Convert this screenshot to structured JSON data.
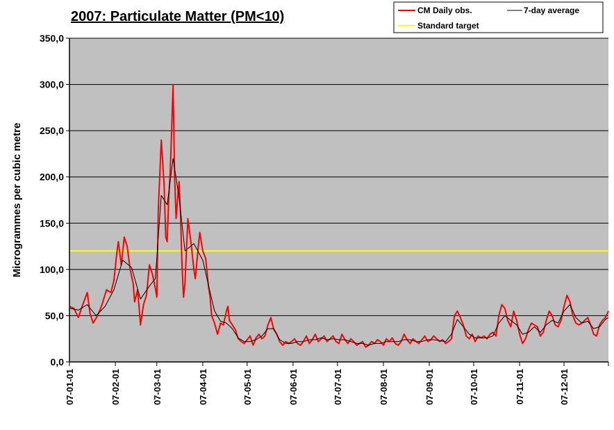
{
  "chart_data": {
    "type": "line",
    "title": "2007: Particulate Matter (PM<10)",
    "ylabel": "Microgrammes per cubic metre",
    "xlabel": "",
    "ylim": [
      0,
      350
    ],
    "y_ticks": [
      "0,0",
      "50,0",
      "100,0",
      "150,0",
      "200,0",
      "250,0",
      "300,0",
      "350,0"
    ],
    "x_ticks": [
      "07-01-01",
      "07-02-01",
      "07-03-01",
      "07-04-01",
      "07-05-01",
      "07-06-01",
      "07-07-01",
      "07-08-01",
      "07-09-01",
      "07-10-01",
      "07-11-01",
      "07-12-01"
    ],
    "x_tick_days": [
      0,
      31,
      59,
      90,
      120,
      151,
      181,
      212,
      243,
      273,
      304,
      334
    ],
    "x_domain_days": [
      0,
      364
    ],
    "grid": "horizontal",
    "legend_position": "top-right",
    "legend": [
      "CM Daily obs.",
      "7-day average",
      "Standard target"
    ],
    "colors": {
      "daily": "#ff0000",
      "average": "#000000",
      "target": "#ffff00",
      "plot_bg": "#c0c0c0"
    },
    "target_value": 120,
    "series": [
      {
        "name": "CM Daily obs.",
        "points": [
          [
            0,
            60
          ],
          [
            3,
            58
          ],
          [
            6,
            48
          ],
          [
            9,
            62
          ],
          [
            12,
            75
          ],
          [
            14,
            52
          ],
          [
            16,
            42
          ],
          [
            19,
            50
          ],
          [
            22,
            62
          ],
          [
            25,
            78
          ],
          [
            28,
            75
          ],
          [
            30,
            88
          ],
          [
            32,
            118
          ],
          [
            33,
            130
          ],
          [
            35,
            105
          ],
          [
            37,
            135
          ],
          [
            39,
            125
          ],
          [
            41,
            100
          ],
          [
            43,
            85
          ],
          [
            44,
            65
          ],
          [
            46,
            78
          ],
          [
            48,
            40
          ],
          [
            50,
            62
          ],
          [
            52,
            72
          ],
          [
            54,
            105
          ],
          [
            56,
            95
          ],
          [
            58,
            80
          ],
          [
            59,
            70
          ],
          [
            60,
            165
          ],
          [
            62,
            240
          ],
          [
            64,
            190
          ],
          [
            65,
            135
          ],
          [
            66,
            130
          ],
          [
            67,
            175
          ],
          [
            68,
            205
          ],
          [
            69,
            250
          ],
          [
            70,
            300
          ],
          [
            71,
            200
          ],
          [
            72,
            155
          ],
          [
            73,
            175
          ],
          [
            74,
            195
          ],
          [
            75,
            160
          ],
          [
            76,
            105
          ],
          [
            77,
            70
          ],
          [
            78,
            85
          ],
          [
            80,
            155
          ],
          [
            82,
            130
          ],
          [
            84,
            100
          ],
          [
            85,
            90
          ],
          [
            87,
            125
          ],
          [
            88,
            140
          ],
          [
            90,
            120
          ],
          [
            92,
            112
          ],
          [
            94,
            80
          ],
          [
            95,
            70
          ],
          [
            96,
            50
          ],
          [
            98,
            42
          ],
          [
            100,
            30
          ],
          [
            102,
            42
          ],
          [
            104,
            40
          ],
          [
            106,
            55
          ],
          [
            107,
            60
          ],
          [
            108,
            45
          ],
          [
            110,
            40
          ],
          [
            112,
            35
          ],
          [
            114,
            25
          ],
          [
            116,
            22
          ],
          [
            118,
            20
          ],
          [
            120,
            24
          ],
          [
            122,
            28
          ],
          [
            124,
            18
          ],
          [
            126,
            26
          ],
          [
            128,
            30
          ],
          [
            130,
            25
          ],
          [
            132,
            28
          ],
          [
            134,
            40
          ],
          [
            136,
            48
          ],
          [
            138,
            35
          ],
          [
            140,
            30
          ],
          [
            142,
            22
          ],
          [
            144,
            18
          ],
          [
            146,
            22
          ],
          [
            148,
            20
          ],
          [
            150,
            22
          ],
          [
            152,
            25
          ],
          [
            154,
            20
          ],
          [
            156,
            18
          ],
          [
            158,
            22
          ],
          [
            160,
            28
          ],
          [
            162,
            20
          ],
          [
            164,
            24
          ],
          [
            166,
            30
          ],
          [
            168,
            22
          ],
          [
            170,
            25
          ],
          [
            172,
            28
          ],
          [
            174,
            22
          ],
          [
            176,
            25
          ],
          [
            178,
            28
          ],
          [
            180,
            22
          ],
          [
            182,
            20
          ],
          [
            184,
            30
          ],
          [
            186,
            24
          ],
          [
            188,
            20
          ],
          [
            190,
            25
          ],
          [
            192,
            22
          ],
          [
            194,
            18
          ],
          [
            196,
            20
          ],
          [
            198,
            22
          ],
          [
            200,
            16
          ],
          [
            202,
            18
          ],
          [
            204,
            22
          ],
          [
            206,
            20
          ],
          [
            208,
            24
          ],
          [
            210,
            22
          ],
          [
            212,
            18
          ],
          [
            214,
            25
          ],
          [
            216,
            22
          ],
          [
            218,
            26
          ],
          [
            220,
            20
          ],
          [
            222,
            18
          ],
          [
            224,
            22
          ],
          [
            226,
            30
          ],
          [
            228,
            24
          ],
          [
            230,
            20
          ],
          [
            232,
            25
          ],
          [
            234,
            22
          ],
          [
            236,
            20
          ],
          [
            238,
            24
          ],
          [
            240,
            28
          ],
          [
            242,
            22
          ],
          [
            244,
            24
          ],
          [
            246,
            28
          ],
          [
            248,
            25
          ],
          [
            250,
            22
          ],
          [
            252,
            24
          ],
          [
            254,
            20
          ],
          [
            256,
            22
          ],
          [
            258,
            25
          ],
          [
            260,
            50
          ],
          [
            262,
            55
          ],
          [
            264,
            48
          ],
          [
            266,
            40
          ],
          [
            268,
            28
          ],
          [
            270,
            25
          ],
          [
            272,
            30
          ],
          [
            274,
            22
          ],
          [
            276,
            28
          ],
          [
            278,
            26
          ],
          [
            280,
            28
          ],
          [
            282,
            25
          ],
          [
            284,
            30
          ],
          [
            286,
            32
          ],
          [
            288,
            28
          ],
          [
            290,
            50
          ],
          [
            292,
            62
          ],
          [
            294,
            58
          ],
          [
            296,
            45
          ],
          [
            298,
            38
          ],
          [
            300,
            55
          ],
          [
            302,
            45
          ],
          [
            304,
            30
          ],
          [
            306,
            20
          ],
          [
            308,
            25
          ],
          [
            310,
            35
          ],
          [
            312,
            42
          ],
          [
            314,
            40
          ],
          [
            316,
            38
          ],
          [
            318,
            28
          ],
          [
            320,
            32
          ],
          [
            322,
            45
          ],
          [
            324,
            55
          ],
          [
            326,
            50
          ],
          [
            328,
            40
          ],
          [
            330,
            38
          ],
          [
            332,
            45
          ],
          [
            334,
            60
          ],
          [
            336,
            72
          ],
          [
            338,
            65
          ],
          [
            340,
            50
          ],
          [
            342,
            42
          ],
          [
            344,
            40
          ],
          [
            346,
            42
          ],
          [
            348,
            45
          ],
          [
            350,
            48
          ],
          [
            352,
            40
          ],
          [
            354,
            30
          ],
          [
            356,
            28
          ],
          [
            358,
            40
          ],
          [
            360,
            45
          ],
          [
            362,
            48
          ],
          [
            364,
            55
          ]
        ]
      },
      {
        "name": "7-day average",
        "points": [
          [
            0,
            58
          ],
          [
            6,
            56
          ],
          [
            12,
            62
          ],
          [
            18,
            50
          ],
          [
            24,
            60
          ],
          [
            30,
            78
          ],
          [
            36,
            110
          ],
          [
            42,
            102
          ],
          [
            48,
            68
          ],
          [
            54,
            82
          ],
          [
            58,
            90
          ],
          [
            62,
            180
          ],
          [
            66,
            170
          ],
          [
            70,
            220
          ],
          [
            74,
            178
          ],
          [
            78,
            120
          ],
          [
            84,
            128
          ],
          [
            90,
            110
          ],
          [
            94,
            82
          ],
          [
            98,
            55
          ],
          [
            102,
            44
          ],
          [
            106,
            42
          ],
          [
            110,
            36
          ],
          [
            114,
            26
          ],
          [
            118,
            22
          ],
          [
            122,
            22
          ],
          [
            126,
            24
          ],
          [
            130,
            28
          ],
          [
            134,
            36
          ],
          [
            138,
            36
          ],
          [
            142,
            24
          ],
          [
            146,
            20
          ],
          [
            150,
            20
          ],
          [
            154,
            22
          ],
          [
            158,
            22
          ],
          [
            162,
            24
          ],
          [
            166,
            24
          ],
          [
            170,
            26
          ],
          [
            174,
            24
          ],
          [
            178,
            25
          ],
          [
            182,
            24
          ],
          [
            186,
            24
          ],
          [
            190,
            22
          ],
          [
            194,
            20
          ],
          [
            198,
            20
          ],
          [
            202,
            18
          ],
          [
            206,
            20
          ],
          [
            210,
            20
          ],
          [
            214,
            22
          ],
          [
            218,
            22
          ],
          [
            222,
            22
          ],
          [
            226,
            24
          ],
          [
            230,
            24
          ],
          [
            234,
            22
          ],
          [
            238,
            22
          ],
          [
            242,
            24
          ],
          [
            246,
            24
          ],
          [
            250,
            23
          ],
          [
            254,
            22
          ],
          [
            258,
            30
          ],
          [
            262,
            46
          ],
          [
            266,
            38
          ],
          [
            270,
            30
          ],
          [
            274,
            26
          ],
          [
            278,
            26
          ],
          [
            282,
            26
          ],
          [
            286,
            28
          ],
          [
            290,
            42
          ],
          [
            294,
            50
          ],
          [
            298,
            45
          ],
          [
            302,
            40
          ],
          [
            306,
            30
          ],
          [
            310,
            32
          ],
          [
            314,
            38
          ],
          [
            318,
            32
          ],
          [
            322,
            40
          ],
          [
            326,
            45
          ],
          [
            330,
            42
          ],
          [
            334,
            55
          ],
          [
            338,
            62
          ],
          [
            342,
            48
          ],
          [
            346,
            42
          ],
          [
            350,
            44
          ],
          [
            354,
            36
          ],
          [
            358,
            38
          ],
          [
            362,
            46
          ],
          [
            364,
            48
          ]
        ]
      }
    ]
  }
}
